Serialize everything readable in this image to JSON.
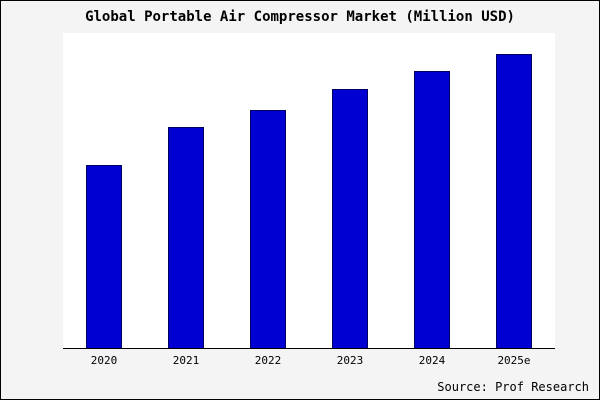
{
  "title": "Global Portable Air Compressor Market (Million USD)",
  "source": "Source: Prof Research",
  "colors": {
    "bar": "#0000d2",
    "bar_border": "#000060",
    "background": "#f4f4f4",
    "plot_background": "#ffffff"
  },
  "chart_data": {
    "type": "bar",
    "title": "Global Portable Air Compressor Market (Million USD)",
    "categories": [
      "2020",
      "2021",
      "2022",
      "2023",
      "2024",
      "2025e"
    ],
    "values": [
      62,
      75,
      81,
      88,
      94,
      100
    ],
    "xlabel": "",
    "ylabel": "",
    "ylim": [
      0,
      107
    ],
    "grid": false,
    "legend": false,
    "annotations": [
      "Source: Prof Research"
    ]
  }
}
